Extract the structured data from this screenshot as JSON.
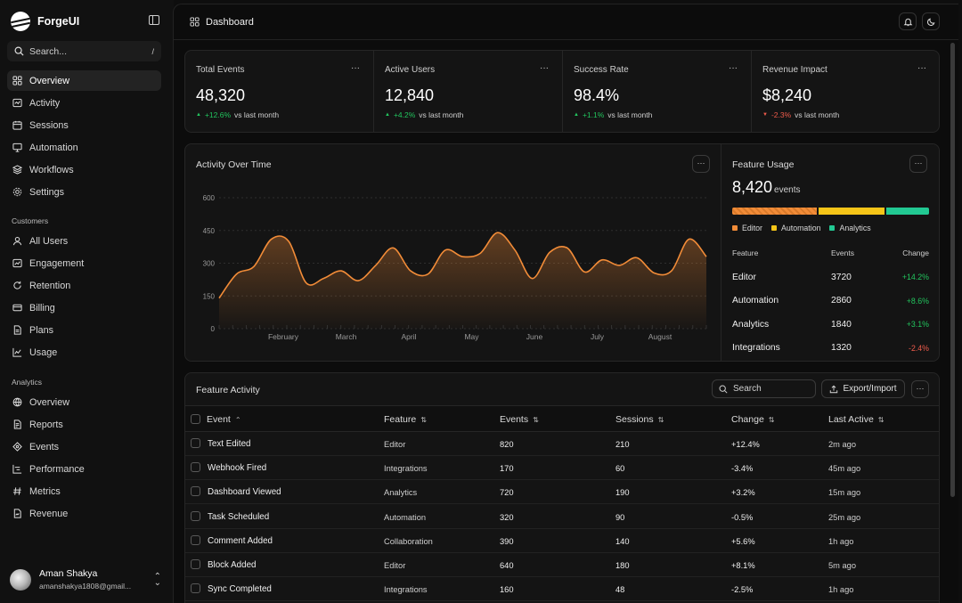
{
  "app": {
    "name": "ForgeUI"
  },
  "search": {
    "placeholder": "Search...",
    "shortcut": "/"
  },
  "nav_main": [
    {
      "label": "Overview",
      "icon": "grid-icon",
      "active": true
    },
    {
      "label": "Activity",
      "icon": "activity-icon"
    },
    {
      "label": "Sessions",
      "icon": "calendar-icon"
    },
    {
      "label": "Automation",
      "icon": "monitor-icon"
    },
    {
      "label": "Workflows",
      "icon": "layers-icon"
    },
    {
      "label": "Settings",
      "icon": "gear-icon"
    }
  ],
  "sections": {
    "customers": "Customers",
    "analytics": "Analytics"
  },
  "nav_customers": [
    {
      "label": "All Users",
      "icon": "user-icon"
    },
    {
      "label": "Engagement",
      "icon": "chart-box-icon"
    },
    {
      "label": "Retention",
      "icon": "refresh-icon"
    },
    {
      "label": "Billing",
      "icon": "credit-card-icon"
    },
    {
      "label": "Plans",
      "icon": "file-icon"
    },
    {
      "label": "Usage",
      "icon": "usage-chart-icon"
    }
  ],
  "nav_analytics": [
    {
      "label": "Overview",
      "icon": "globe-icon"
    },
    {
      "label": "Reports",
      "icon": "report-icon"
    },
    {
      "label": "Events",
      "icon": "events-icon"
    },
    {
      "label": "Performance",
      "icon": "performance-icon"
    },
    {
      "label": "Metrics",
      "icon": "hash-icon"
    },
    {
      "label": "Revenue",
      "icon": "revenue-icon"
    }
  ],
  "user": {
    "name": "Aman Shakya",
    "email": "amanshakya1808@gmail..."
  },
  "topbar": {
    "title": "Dashboard"
  },
  "kpis": [
    {
      "label": "Total Events",
      "value": "48,320",
      "delta": "+12.6%",
      "direction": "up",
      "suffix": "vs last month"
    },
    {
      "label": "Active Users",
      "value": "12,840",
      "delta": "+4.2%",
      "direction": "up",
      "suffix": "vs last month"
    },
    {
      "label": "Success Rate",
      "value": "98.4%",
      "delta": "+1.1%",
      "direction": "up",
      "suffix": "vs last month"
    },
    {
      "label": "Revenue Impact",
      "value": "$8,240",
      "delta": "-2.3%",
      "direction": "down",
      "suffix": "vs last month"
    }
  ],
  "activity_chart": {
    "title": "Activity Over Time",
    "chart_data": {
      "type": "area",
      "y_ticks": [
        0,
        150,
        300,
        450,
        600
      ],
      "ylim": [
        0,
        600
      ],
      "x_ticks": [
        "February",
        "March",
        "April",
        "May",
        "June",
        "July",
        "August"
      ],
      "values": [
        140,
        250,
        285,
        410,
        400,
        210,
        230,
        265,
        220,
        290,
        370,
        265,
        250,
        360,
        330,
        345,
        440,
        360,
        230,
        350,
        370,
        260,
        315,
        290,
        325,
        255,
        265,
        410,
        330
      ],
      "color": "#f28c38",
      "grid": true
    }
  },
  "feature_usage": {
    "title": "Feature Usage",
    "total": "8,420",
    "unit": "events",
    "bar_shares": [
      0.44,
      0.34,
      0.22
    ],
    "legend": [
      {
        "label": "Editor",
        "color": "#f28c38"
      },
      {
        "label": "Automation",
        "color": "#f5c518"
      },
      {
        "label": "Analytics",
        "color": "#22c993"
      }
    ],
    "columns": [
      "Feature",
      "Events",
      "Change"
    ],
    "rows": [
      {
        "feature": "Editor",
        "events": "3720",
        "change": "+14.2%",
        "direction": "up"
      },
      {
        "feature": "Automation",
        "events": "2860",
        "change": "+8.6%",
        "direction": "up"
      },
      {
        "feature": "Analytics",
        "events": "1840",
        "change": "+3.1%",
        "direction": "up"
      },
      {
        "feature": "Integrations",
        "events": "1320",
        "change": "-2.4%",
        "direction": "down"
      }
    ]
  },
  "feature_activity": {
    "title": "Feature Activity",
    "search_placeholder": "Search",
    "export_label": "Export/Import",
    "columns": [
      "Event",
      "Feature",
      "Events",
      "Sessions",
      "Change",
      "Last Active"
    ],
    "rows": [
      {
        "event": "Text Edited",
        "feature": "Editor",
        "events": "820",
        "sessions": "210",
        "change": "+12.4%",
        "direction": "up",
        "last": "2m ago"
      },
      {
        "event": "Webhook Fired",
        "feature": "Integrations",
        "events": "170",
        "sessions": "60",
        "change": "-3.4%",
        "direction": "down",
        "last": "45m ago"
      },
      {
        "event": "Dashboard Viewed",
        "feature": "Analytics",
        "events": "720",
        "sessions": "190",
        "change": "+3.2%",
        "direction": "up",
        "last": "15m ago"
      },
      {
        "event": "Task Scheduled",
        "feature": "Automation",
        "events": "320",
        "sessions": "90",
        "change": "-0.5%",
        "direction": "down",
        "last": "25m ago"
      },
      {
        "event": "Comment Added",
        "feature": "Collaboration",
        "events": "390",
        "sessions": "140",
        "change": "+5.6%",
        "direction": "up",
        "last": "1h ago"
      },
      {
        "event": "Block Added",
        "feature": "Editor",
        "events": "640",
        "sessions": "180",
        "change": "+8.1%",
        "direction": "up",
        "last": "5m ago"
      },
      {
        "event": "Sync Completed",
        "feature": "Integrations",
        "events": "160",
        "sessions": "48",
        "change": "-2.5%",
        "direction": "down",
        "last": "1h ago"
      }
    ]
  },
  "colors": {
    "up": "#22c55e",
    "down": "#ef5b4b",
    "accent": "#f28c38"
  }
}
